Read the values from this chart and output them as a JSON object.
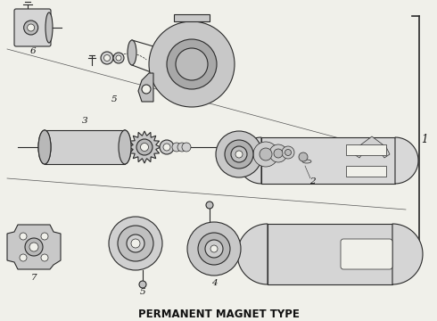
{
  "title": "PERMANENT MAGNET TYPE",
  "bg": "#f0f0ea",
  "lc": "#2a2a2a",
  "tc": "#111111",
  "title_fontsize": 8.5,
  "label_fontsize": 7.5,
  "lw": 0.8,
  "lw_thick": 1.2,
  "lw_thin": 0.5
}
